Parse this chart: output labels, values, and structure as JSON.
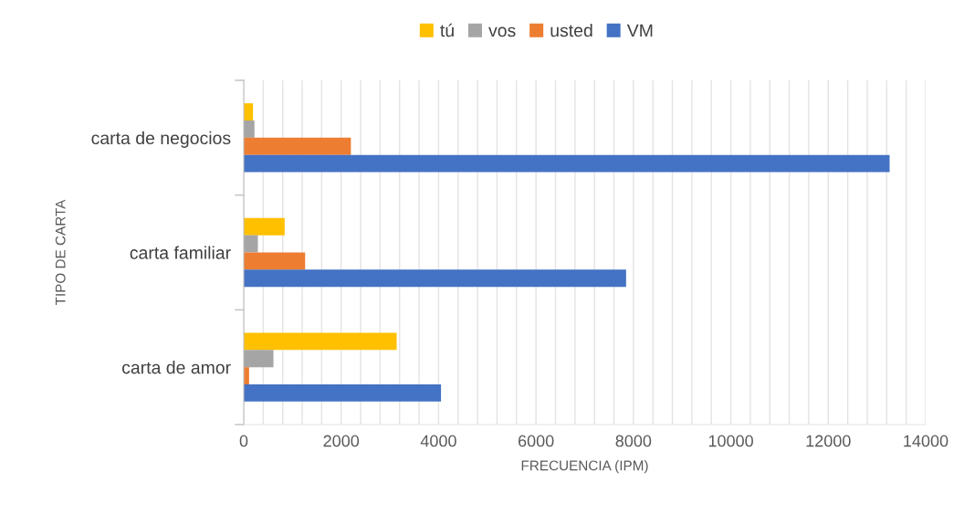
{
  "chart_data": {
    "type": "bar",
    "orientation": "horizontal",
    "xlabel": "FRECUENCIA (IPM)",
    "ylabel": "TIPO DE CARTA",
    "categories": [
      "carta de negocios",
      "carta familiar",
      "carta de amor"
    ],
    "series": [
      {
        "name": "tú",
        "color": "#ffc000",
        "values": [
          190,
          840,
          3140
        ]
      },
      {
        "name": "vos",
        "color": "#a5a5a5",
        "values": [
          220,
          290,
          610
        ]
      },
      {
        "name": "usted",
        "color": "#ed7d31",
        "values": [
          2200,
          1260,
          110
        ]
      },
      {
        "name": "VM",
        "color": "#4472c4",
        "values": [
          13260,
          7850,
          4050
        ]
      }
    ],
    "xlim": [
      0,
      14000
    ],
    "xticks": [
      0,
      {
        "value": 400,
        "label": null
      },
      {
        "value": 800,
        "label": null
      },
      {
        "value": 1200,
        "label": null
      },
      {
        "value": 1600,
        "label": null
      },
      2000,
      {
        "value": 2400,
        "label": null
      },
      {
        "value": 2800,
        "label": null
      },
      {
        "value": 3200,
        "label": null
      },
      {
        "value": 3600,
        "label": null
      },
      4000,
      {
        "value": 4400,
        "label": null
      },
      {
        "value": 4800,
        "label": null
      },
      {
        "value": 5200,
        "label": null
      },
      {
        "value": 5600,
        "label": null
      },
      6000,
      {
        "value": 6400,
        "label": null
      },
      {
        "value": 6800,
        "label": null
      },
      {
        "value": 7200,
        "label": null
      },
      {
        "value": 7600,
        "label": null
      },
      8000,
      {
        "value": 8400,
        "label": null
      },
      {
        "value": 8800,
        "label": null
      },
      {
        "value": 9200,
        "label": null
      },
      {
        "value": 9600,
        "label": null
      },
      10000,
      {
        "value": 10400,
        "label": null
      },
      {
        "value": 10800,
        "label": null
      },
      {
        "value": 11200,
        "label": null
      },
      {
        "value": 11600,
        "label": null
      },
      12000,
      {
        "value": 12400,
        "label": null
      },
      {
        "value": 12800,
        "label": null
      },
      {
        "value": 13200,
        "label": null
      },
      {
        "value": 13600,
        "label": null
      },
      14000
    ],
    "grid": "x",
    "legend": "top"
  }
}
